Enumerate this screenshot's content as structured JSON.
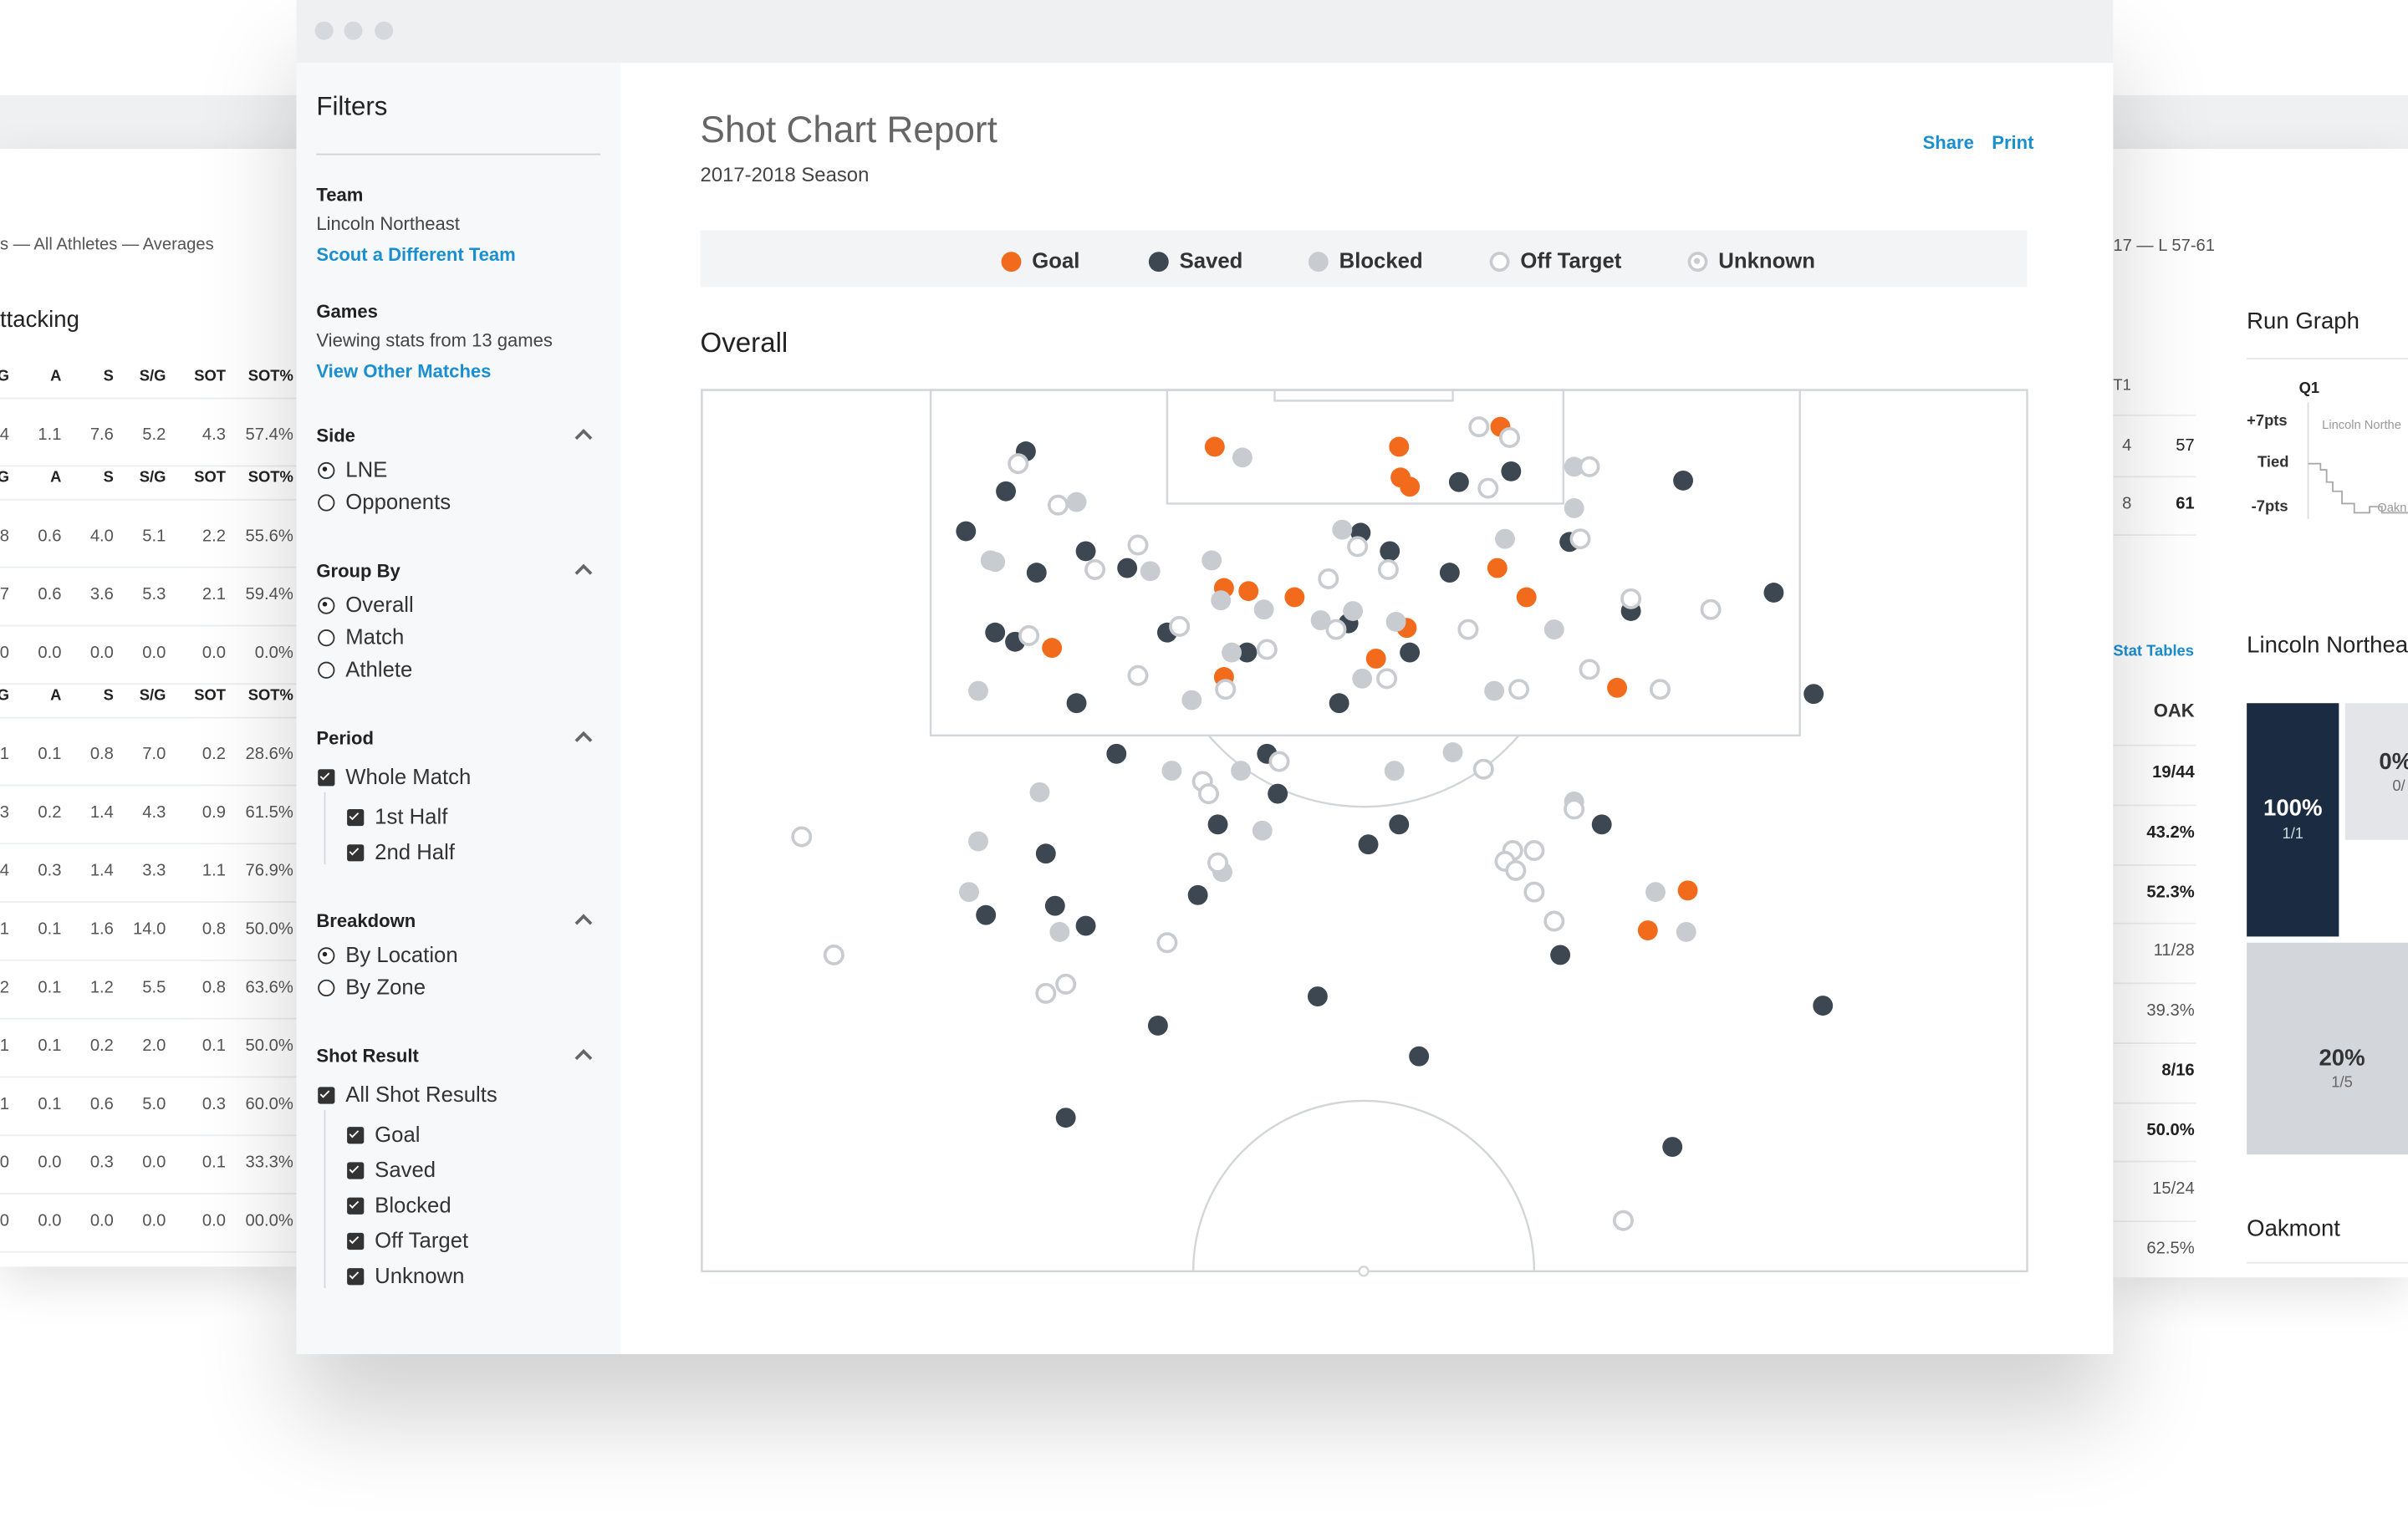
{
  "background_left": {
    "breadcrumb": "s — All Athletes — Averages",
    "title": "ttacking",
    "table": [
      {
        "header": [
          "G",
          "A",
          "S",
          "S/G",
          "SOT",
          "SOT%"
        ],
        "rows": [
          [
            "4",
            "1.1",
            "7.6",
            "5.2",
            "4.3",
            "57.4%"
          ]
        ]
      },
      {
        "header": [
          "G",
          "A",
          "S",
          "S/G",
          "SOT",
          "SOT%"
        ],
        "rows": [
          [
            "8",
            "0.6",
            "4.0",
            "5.1",
            "2.2",
            "55.6%"
          ],
          [
            "7",
            "0.6",
            "3.6",
            "5.3",
            "2.1",
            "59.4%"
          ],
          [
            "0",
            "0.0",
            "0.0",
            "0.0",
            "0.0",
            "0.0%"
          ]
        ]
      },
      {
        "header": [
          "G",
          "A",
          "S",
          "S/G",
          "SOT",
          "SOT%"
        ],
        "rows": [
          [
            "1",
            "0.1",
            "0.8",
            "7.0",
            "0.2",
            "28.6%"
          ],
          [
            "3",
            "0.2",
            "1.4",
            "4.3",
            "0.9",
            "61.5%"
          ],
          [
            "4",
            "0.3",
            "1.4",
            "3.3",
            "1.1",
            "76.9%"
          ],
          [
            "1",
            "0.1",
            "1.6",
            "14.0",
            "0.8",
            "50.0%"
          ],
          [
            "2",
            "0.1",
            "1.2",
            "5.5",
            "0.8",
            "63.6%"
          ],
          [
            "1",
            "0.1",
            "0.2",
            "2.0",
            "0.1",
            "50.0%"
          ],
          [
            "1",
            "0.1",
            "0.6",
            "5.0",
            "0.3",
            "60.0%"
          ],
          [
            "0",
            "0.0",
            "0.3",
            "0.0",
            "0.1",
            "33.3%"
          ],
          [
            "0",
            "0.0",
            "0.0",
            "0.0",
            "0.0",
            "00.0%"
          ]
        ]
      }
    ]
  },
  "background_right": {
    "result": "17 — L 57-61",
    "score_header": "T1",
    "score_rows": [
      [
        "4",
        "57"
      ],
      [
        "8",
        "61"
      ]
    ],
    "stat_link": "Stat Tables",
    "oak_header": "OAK",
    "oak_rows": [
      {
        "value": "19/44",
        "bold": true
      },
      {
        "value": "43.2%",
        "bold": true
      },
      {
        "value": "52.3%",
        "bold": true
      },
      {
        "value": "11/28",
        "bold": false
      },
      {
        "value": "39.3%",
        "bold": false
      },
      {
        "value": "8/16",
        "bold": true
      },
      {
        "value": "50.0%",
        "bold": true
      },
      {
        "value": "15/24",
        "bold": false
      },
      {
        "value": "62.5%",
        "bold": false
      }
    ],
    "run_graph": {
      "title": "Run Graph",
      "period": "Q1",
      "labels": [
        "+7pts",
        "Tied",
        "-7pts"
      ],
      "team_a": "Lincoln Northe",
      "team_b": "Oakn"
    },
    "team_title": "Lincoln Northea",
    "cells": [
      {
        "percent": "100%",
        "fraction": "1/1"
      },
      {
        "percent": "0%",
        "fraction": "0/"
      },
      {
        "percent": "20%",
        "fraction": "1/5"
      }
    ],
    "opponent_title": "Oakmont"
  },
  "sidebar": {
    "title": "Filters",
    "team": {
      "label": "Team",
      "value": "Lincoln Northeast",
      "link": "Scout a Different Team"
    },
    "games": {
      "label": "Games",
      "value": "Viewing stats from 13 games",
      "link": "View Other Matches"
    },
    "sections": [
      {
        "title": "Side",
        "kind": "radio",
        "options": [
          {
            "label": "LNE",
            "checked": true
          },
          {
            "label": "Opponents",
            "checked": false
          }
        ]
      },
      {
        "title": "Group By",
        "kind": "radio",
        "options": [
          {
            "label": "Overall",
            "checked": true
          },
          {
            "label": "Match",
            "checked": false
          },
          {
            "label": "Athlete",
            "checked": false
          }
        ]
      },
      {
        "title": "Period",
        "kind": "checkbox",
        "options": [
          {
            "label": "Whole Match",
            "checked": true
          }
        ],
        "sub_options": [
          {
            "label": "1st Half",
            "checked": true
          },
          {
            "label": "2nd Half",
            "checked": true
          }
        ]
      },
      {
        "title": "Breakdown",
        "kind": "radio",
        "options": [
          {
            "label": "By Location",
            "checked": true
          },
          {
            "label": "By Zone",
            "checked": false
          }
        ]
      },
      {
        "title": "Shot Result",
        "kind": "checkbox",
        "options": [
          {
            "label": "All Shot Results",
            "checked": true
          }
        ],
        "sub_options": [
          {
            "label": "Goal",
            "checked": true
          },
          {
            "label": "Saved",
            "checked": true
          },
          {
            "label": "Blocked",
            "checked": true
          },
          {
            "label": "Off Target",
            "checked": true
          },
          {
            "label": "Unknown",
            "checked": true
          }
        ]
      }
    ]
  },
  "header": {
    "title": "Shot Chart Report",
    "subtitle": "2017-2018 Season",
    "actions": [
      "Share",
      "Print"
    ]
  },
  "shot_chart": {
    "title": "Overall",
    "legend": [
      {
        "name": "Goal",
        "color": "#f26a1b",
        "style": "filled"
      },
      {
        "name": "Saved",
        "color": "#3d4751",
        "style": "filled"
      },
      {
        "name": "Blocked",
        "color": "#c8cbcf",
        "style": "filled"
      },
      {
        "name": "Off Target",
        "color": "#c8cbcf",
        "style": "ring"
      },
      {
        "name": "Unknown",
        "color": "#c8cbcf",
        "style": "ring-dot"
      }
    ],
    "shots": [
      [
        334,
        37,
        0
      ],
      [
        454,
        37,
        0
      ],
      [
        455,
        57,
        0
      ],
      [
        461,
        63,
        0
      ],
      [
        520,
        24,
        0
      ],
      [
        340,
        129,
        0
      ],
      [
        356,
        131,
        0
      ],
      [
        386,
        135,
        0
      ],
      [
        518,
        116,
        0
      ],
      [
        537,
        135,
        0
      ],
      [
        459,
        155,
        0
      ],
      [
        228,
        168,
        0
      ],
      [
        439,
        175,
        0
      ],
      [
        340,
        187,
        0
      ],
      [
        596,
        194,
        0
      ],
      [
        642,
        326,
        0
      ],
      [
        616,
        352,
        0
      ],
      [
        211,
        40,
        1
      ],
      [
        198,
        66,
        1
      ],
      [
        172,
        92,
        1
      ],
      [
        218,
        119,
        1
      ],
      [
        250,
        105,
        1
      ],
      [
        277,
        116,
        1
      ],
      [
        191,
        158,
        1
      ],
      [
        204,
        164,
        1
      ],
      [
        303,
        158,
        1
      ],
      [
        355,
        171,
        1
      ],
      [
        244,
        204,
        1
      ],
      [
        429,
        93,
        1
      ],
      [
        448,
        105,
        1
      ],
      [
        487,
        119,
        1
      ],
      [
        493,
        60,
        1
      ],
      [
        527,
        53,
        1
      ],
      [
        565,
        99,
        1
      ],
      [
        639,
        59,
        1
      ],
      [
        698,
        132,
        1
      ],
      [
        605,
        144,
        1
      ],
      [
        724,
        198,
        1
      ],
      [
        421,
        152,
        1
      ],
      [
        461,
        171,
        1
      ],
      [
        415,
        204,
        1
      ],
      [
        270,
        237,
        1
      ],
      [
        368,
        237,
        1
      ],
      [
        375,
        263,
        1
      ],
      [
        454,
        283,
        1
      ],
      [
        434,
        296,
        1
      ],
      [
        336,
        283,
        1
      ],
      [
        323,
        329,
        1
      ],
      [
        224,
        302,
        1
      ],
      [
        230,
        336,
        1
      ],
      [
        185,
        342,
        1
      ],
      [
        250,
        349,
        1
      ],
      [
        586,
        283,
        1
      ],
      [
        559,
        368,
        1
      ],
      [
        401,
        395,
        1
      ],
      [
        297,
        414,
        1
      ],
      [
        467,
        434,
        1
      ],
      [
        237,
        474,
        1
      ],
      [
        632,
        493,
        1
      ],
      [
        730,
        401,
        1
      ],
      [
        352,
        44,
        2
      ],
      [
        244,
        73,
        2
      ],
      [
        188,
        111,
        2
      ],
      [
        191,
        112,
        2
      ],
      [
        332,
        111,
        2
      ],
      [
        292,
        118,
        2
      ],
      [
        338,
        137,
        2
      ],
      [
        366,
        143,
        2
      ],
      [
        424,
        144,
        2
      ],
      [
        417,
        91,
        2
      ],
      [
        403,
        150,
        2
      ],
      [
        452,
        151,
        2
      ],
      [
        345,
        171,
        2
      ],
      [
        430,
        188,
        2
      ],
      [
        319,
        202,
        2
      ],
      [
        180,
        196,
        2
      ],
      [
        516,
        196,
        2
      ],
      [
        523,
        97,
        2
      ],
      [
        568,
        50,
        2
      ],
      [
        568,
        77,
        2
      ],
      [
        555,
        156,
        2
      ],
      [
        306,
        248,
        2
      ],
      [
        351,
        248,
        2
      ],
      [
        220,
        262,
        2
      ],
      [
        365,
        287,
        2
      ],
      [
        451,
        248,
        2
      ],
      [
        489,
        236,
        2
      ],
      [
        568,
        268,
        2
      ],
      [
        180,
        294,
        2
      ],
      [
        174,
        327,
        2
      ],
      [
        233,
        353,
        2
      ],
      [
        339,
        314,
        2
      ],
      [
        621,
        327,
        2
      ],
      [
        641,
        353,
        2
      ],
      [
        206,
        48,
        3
      ],
      [
        232,
        75,
        3
      ],
      [
        284,
        101,
        3
      ],
      [
        256,
        117,
        3
      ],
      [
        311,
        154,
        3
      ],
      [
        284,
        186,
        3
      ],
      [
        213,
        160,
        3
      ],
      [
        341,
        195,
        3
      ],
      [
        368,
        169,
        3
      ],
      [
        408,
        123,
        3
      ],
      [
        413,
        156,
        3
      ],
      [
        427,
        102,
        3
      ],
      [
        447,
        117,
        3
      ],
      [
        446,
        188,
        3
      ],
      [
        499,
        156,
        3
      ],
      [
        512,
        64,
        3
      ],
      [
        506,
        24,
        3
      ],
      [
        526,
        31,
        3
      ],
      [
        578,
        50,
        3
      ],
      [
        572,
        97,
        3
      ],
      [
        605,
        136,
        3
      ],
      [
        657,
        143,
        3
      ],
      [
        578,
        182,
        3
      ],
      [
        532,
        195,
        3
      ],
      [
        624,
        195,
        3
      ],
      [
        376,
        242,
        3
      ],
      [
        326,
        255,
        3
      ],
      [
        330,
        263,
        3
      ],
      [
        509,
        247,
        3
      ],
      [
        568,
        273,
        3
      ],
      [
        528,
        300,
        3
      ],
      [
        542,
        300,
        3
      ],
      [
        523,
        307,
        3
      ],
      [
        530,
        313,
        3
      ],
      [
        542,
        327,
        3
      ],
      [
        555,
        346,
        3
      ],
      [
        336,
        308,
        3
      ],
      [
        303,
        360,
        3
      ],
      [
        237,
        387,
        3
      ],
      [
        224,
        393,
        3
      ],
      [
        65,
        291,
        3
      ],
      [
        86,
        368,
        3
      ],
      [
        600,
        541,
        3
      ]
    ]
  }
}
